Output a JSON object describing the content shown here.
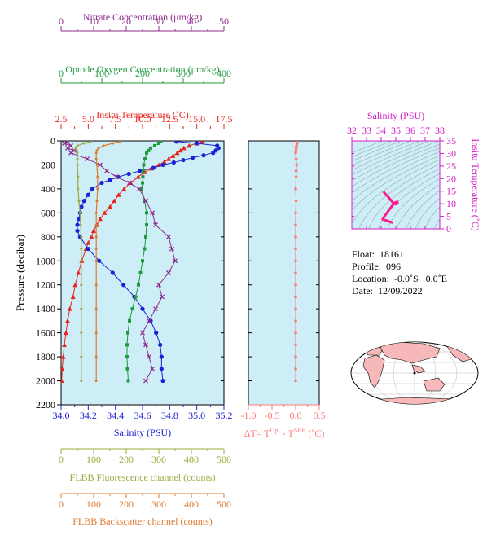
{
  "colors": {
    "temperature": "#e8231c",
    "salinity": "#1c22d6",
    "nitrate": "#8e2a8e",
    "oxygen": "#1e9a3c",
    "fluorescence": "#9ea83c",
    "backscatter": "#e07a2c",
    "dt": "#ff7a7a",
    "plot_bg": "#cdeef7",
    "ts_axis": "#d61ac8",
    "ts_curve": "#ff1a8c",
    "land": "#f6b8b8"
  },
  "chart_data": [
    {
      "type": "line",
      "name": "main-profile",
      "ylabel": "Pressure (decibar)",
      "ylim": [
        2200,
        0
      ],
      "yticks": [
        "0",
        "200",
        "400",
        "600",
        "800",
        "1000",
        "1200",
        "1400",
        "1600",
        "1800",
        "2000",
        "2200"
      ],
      "axes": {
        "nitrate": {
          "label": "Nitrate Concentration (μm/kg)",
          "range": [
            0,
            50
          ],
          "ticks": [
            "0",
            "10",
            "20",
            "30",
            "40",
            "50"
          ]
        },
        "oxygen": {
          "label": "Optode Oxygen Concentration (μm/kg)",
          "range": [
            0,
            400
          ],
          "ticks": [
            "0",
            "100",
            "200",
            "300",
            "400"
          ]
        },
        "temperature": {
          "label": "Insitu Temperature (˚C)",
          "range": [
            2.5,
            17.5
          ],
          "ticks": [
            "2.5",
            "5.0",
            "7.5",
            "10.0",
            "12.5",
            "15.0",
            "17.5"
          ]
        },
        "salinity": {
          "label": "Salinity (PSU)",
          "range": [
            34.0,
            35.2
          ],
          "ticks": [
            "34.0",
            "34.2",
            "34.4",
            "34.6",
            "34.8",
            "35.0",
            "35.2"
          ]
        },
        "fluorescence": {
          "label": "FLBB Fluorescence channel (counts)",
          "range": [
            0,
            500
          ],
          "ticks": [
            "0",
            "100",
            "200",
            "300",
            "400",
            "500"
          ]
        },
        "backscatter": {
          "label": "FLBB Backscatter channel (counts)",
          "range": [
            0,
            500
          ],
          "ticks": [
            "0",
            "100",
            "200",
            "300",
            "400",
            "500"
          ]
        }
      },
      "series": [
        {
          "name": "Insitu Temperature",
          "axis": "temperature",
          "marker": "triangle",
          "p": [
            5,
            20,
            40,
            60,
            80,
            100,
            125,
            150,
            175,
            200,
            230,
            260,
            300,
            350,
            400,
            450,
            500,
            550,
            600,
            650,
            700,
            750,
            800,
            850,
            900,
            1000,
            1100,
            1200,
            1300,
            1400,
            1500,
            1600,
            1700,
            1800,
            1900,
            2000
          ],
          "v": [
            15.5,
            15.0,
            14.3,
            13.8,
            13.5,
            13.2,
            12.8,
            12.4,
            12.0,
            11.5,
            10.8,
            10.2,
            9.6,
            8.9,
            8.3,
            7.8,
            7.4,
            7.0,
            6.5,
            6.1,
            5.8,
            5.5,
            5.3,
            5.0,
            4.8,
            4.4,
            4.1,
            3.8,
            3.6,
            3.3,
            3.1,
            2.95,
            2.8,
            2.7,
            2.6,
            2.55
          ]
        },
        {
          "name": "Salinity",
          "axis": "salinity",
          "marker": "circle",
          "p": [
            5,
            20,
            40,
            60,
            80,
            100,
            120,
            140,
            160,
            180,
            200,
            225,
            250,
            275,
            300,
            325,
            350,
            400,
            450,
            500,
            550,
            600,
            650,
            700,
            750,
            800,
            900,
            1000,
            1100,
            1200,
            1300,
            1400,
            1500,
            1600,
            1700,
            1800,
            1900,
            2000
          ],
          "v": [
            34.85,
            35.0,
            35.15,
            35.16,
            35.14,
            35.12,
            35.05,
            34.97,
            34.9,
            34.83,
            34.75,
            34.68,
            34.58,
            34.5,
            34.42,
            34.36,
            34.3,
            34.23,
            34.2,
            34.17,
            34.15,
            34.14,
            34.13,
            34.12,
            34.12,
            34.14,
            34.2,
            34.28,
            34.38,
            34.46,
            34.54,
            34.6,
            34.66,
            34.7,
            34.73,
            34.74,
            34.74,
            34.75
          ]
        },
        {
          "name": "Optode Oxygen",
          "axis": "oxygen",
          "marker": "square",
          "p": [
            5,
            20,
            40,
            60,
            80,
            100,
            150,
            200,
            250,
            300,
            350,
            400,
            500,
            600,
            700,
            800,
            900,
            1000,
            1100,
            1200,
            1300,
            1400,
            1500,
            1600,
            1700,
            1800,
            1900,
            2000
          ],
          "v": [
            245,
            240,
            230,
            220,
            215,
            210,
            206,
            203,
            202,
            201,
            200,
            198,
            205,
            210,
            210,
            208,
            205,
            200,
            195,
            190,
            183,
            175,
            168,
            164,
            162,
            162,
            163,
            165
          ]
        },
        {
          "name": "Nitrate",
          "axis": "nitrate",
          "marker": "cross",
          "p": [
            5,
            20,
            40,
            60,
            80,
            100,
            150,
            200,
            250,
            300,
            350,
            400,
            500,
            600,
            700,
            800,
            900,
            1000,
            1100,
            1200,
            1300,
            1400,
            1500,
            1600,
            1700,
            1800,
            1900,
            2000
          ],
          "v": [
            2,
            1,
            3,
            2,
            4,
            3,
            8,
            12,
            14,
            17,
            21,
            24,
            26,
            28,
            29,
            33,
            34,
            35,
            33,
            30,
            31,
            29,
            27,
            25,
            26,
            27,
            28,
            26
          ]
        },
        {
          "name": "FLBB Fluorescence",
          "axis": "fluorescence",
          "marker": "dot",
          "p": [
            5,
            20,
            40,
            60,
            80,
            100,
            150,
            200,
            300,
            400,
            500,
            600,
            700,
            800,
            900,
            1000,
            1200,
            1400,
            1600,
            1800,
            2000
          ],
          "v": [
            90,
            70,
            50,
            45,
            48,
            50,
            50,
            50,
            52,
            52,
            55,
            58,
            60,
            62,
            62,
            62,
            62,
            62,
            62,
            62,
            62
          ]
        },
        {
          "name": "FLBB Backscatter",
          "axis": "backscatter",
          "marker": "dot",
          "p": [
            5,
            20,
            40,
            60,
            80,
            100,
            150,
            200,
            300,
            400,
            500,
            600,
            700,
            800,
            900,
            1000,
            1200,
            1400,
            1600,
            1800,
            2000
          ],
          "v": [
            180,
            160,
            130,
            115,
            110,
            108,
            108,
            110,
            112,
            112,
            110,
            108,
            108,
            108,
            108,
            108,
            108,
            108,
            108,
            108,
            108
          ]
        }
      ]
    },
    {
      "type": "line",
      "name": "temperature-difference",
      "xlabel": "ΔT= T^Opt - T^SBE (˚C)",
      "xlabel_main": "ΔT= T",
      "xlabel_sup1": "Opt",
      "xlabel_mid": " - T",
      "xlabel_sup2": "SBE",
      "xlabel_end": " (˚C)",
      "xlim": [
        -1.0,
        0.5
      ],
      "xticks": [
        "-1.0",
        "-0.5",
        "0.0",
        "0.5"
      ],
      "series": [
        {
          "name": "ΔT",
          "p": [
            5,
            20,
            40,
            60,
            80,
            100,
            150,
            200,
            250,
            300,
            400,
            500,
            600,
            700,
            800,
            900,
            1000,
            1100,
            1200,
            1300,
            1400,
            1500,
            1600,
            1700,
            1800,
            1900,
            2000
          ],
          "v": [
            0.02,
            0.03,
            0.02,
            0.01,
            0.01,
            0.0,
            0.01,
            0.02,
            0.01,
            0.01,
            0.0,
            0.01,
            0.0,
            0.0,
            0.0,
            0.0,
            0.0,
            0.0,
            0.0,
            0.0,
            0.0,
            0.0,
            0.0,
            0.0,
            0.0,
            0.0,
            0.0
          ]
        }
      ]
    },
    {
      "type": "line",
      "name": "t-s-diagram",
      "xlabel": "Salinity (PSU)",
      "ylabel": "Insitu Temperature (˚C)",
      "xlim": [
        32,
        38
      ],
      "ylim": [
        0,
        35
      ],
      "xticks": [
        "32",
        "33",
        "34",
        "35",
        "36",
        "37",
        "38"
      ],
      "yticks": [
        "0",
        "5",
        "10",
        "15",
        "20",
        "25",
        "30",
        "35"
      ],
      "series": [
        {
          "name": "T-S",
          "s": [
            34.2,
            34.3,
            34.5,
            34.65,
            34.8,
            34.9,
            35.0,
            35.12,
            35.1,
            34.9,
            34.7,
            34.5,
            34.3,
            34.15,
            34.1,
            34.2,
            34.45,
            34.6,
            34.7,
            34.75
          ],
          "t": [
            14.5,
            13.8,
            12.6,
            11.5,
            10.5,
            10.2,
            9.8,
            10.2,
            10.8,
            10.3,
            8.8,
            7.2,
            5.6,
            4.3,
            3.8,
            3.6,
            3.2,
            2.8,
            2.6,
            2.55
          ]
        }
      ]
    }
  ],
  "float_info": {
    "float": "Float:  18161",
    "profile": "Profile:  096",
    "location": "Location:  -0.0˚S   0.0˚E",
    "date": "Date:  12/09/2022"
  }
}
